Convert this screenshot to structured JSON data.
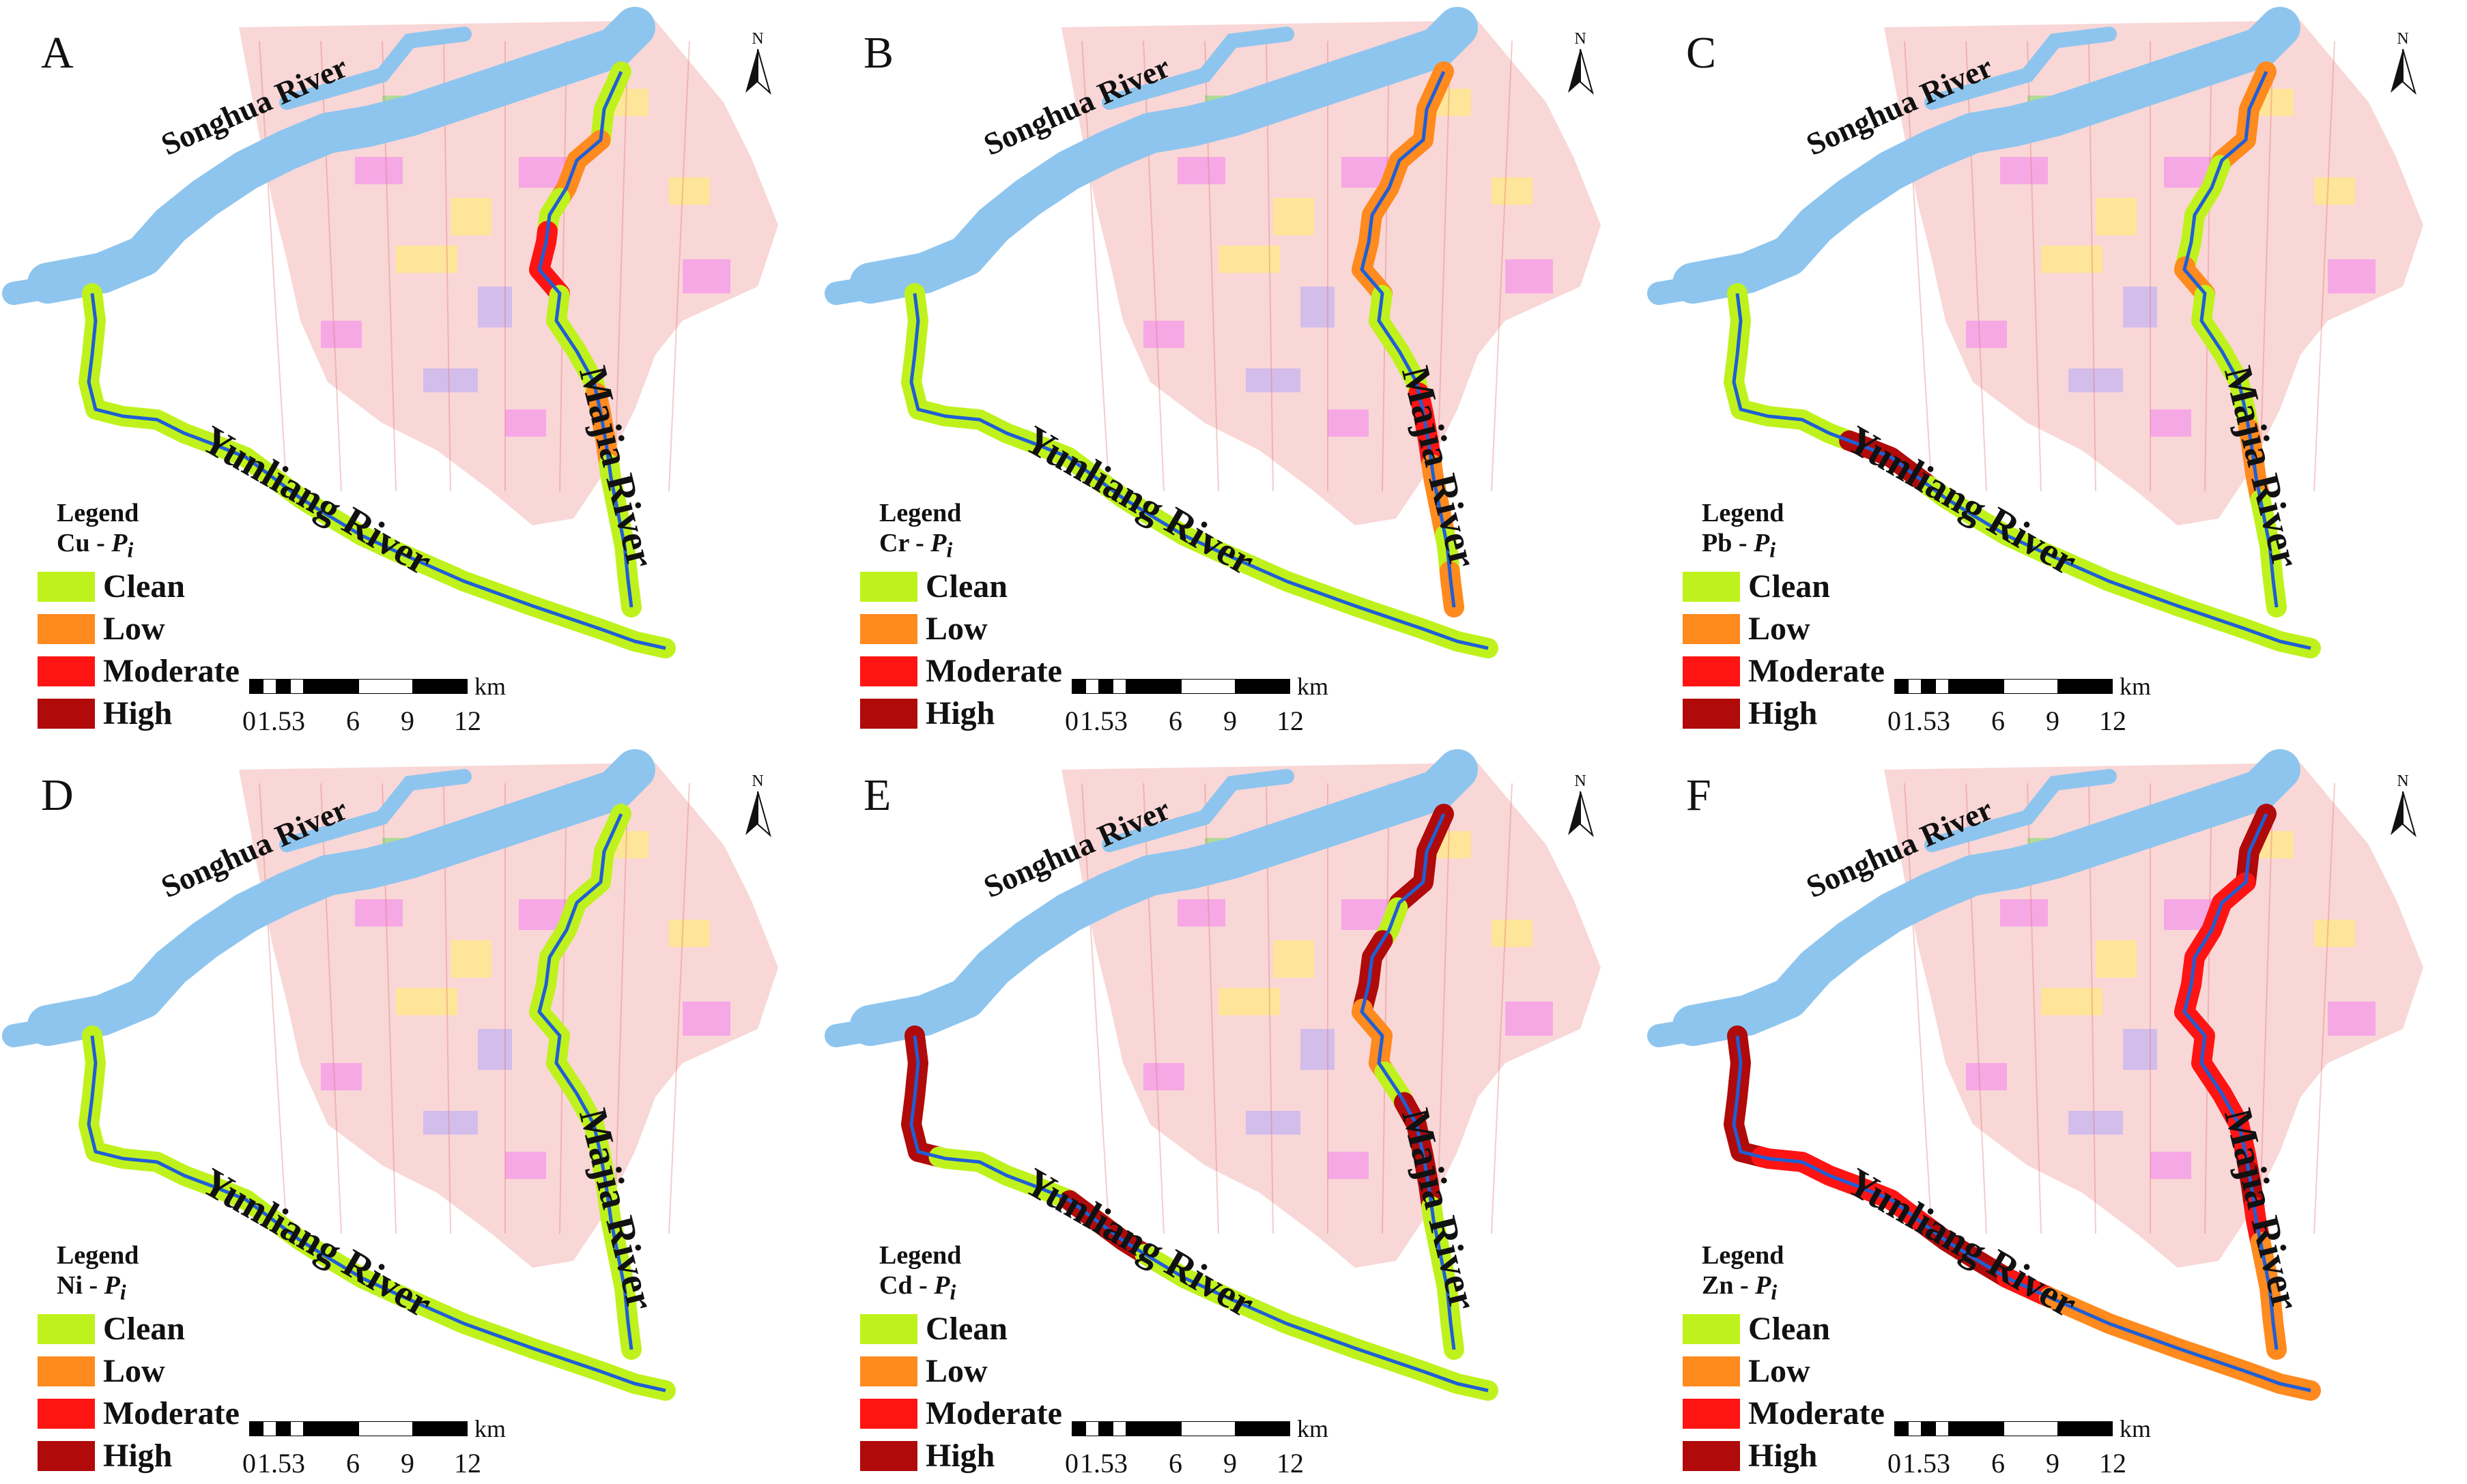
{
  "colors": {
    "clean": "#bff21c",
    "low": "#ff8a1e",
    "moderate": "#ff1414",
    "high": "#b00a0a",
    "river_water": "#8ec5ee",
    "river_channel": "#1f5fd6",
    "urban_base": "#f7c9c9"
  },
  "labels": {
    "songhua": "Songhua River",
    "yunliang": "Yunliang River",
    "majia": "Majia River",
    "legend_title": "Legend",
    "north": "N",
    "km": "km",
    "index_suffix": "P",
    "index_sub": "i",
    "index_sep": " - "
  },
  "legend_classes": [
    {
      "key": "clean",
      "label": "Clean"
    },
    {
      "key": "low",
      "label": "Low"
    },
    {
      "key": "moderate",
      "label": "Moderate"
    },
    {
      "key": "high",
      "label": "High"
    }
  ],
  "scale_ticks": [
    "0",
    "1.5",
    "3",
    "6",
    "9",
    "12"
  ],
  "panels": [
    {
      "letter": "A",
      "metal": "Cu",
      "majia": [
        "clean",
        "clean",
        "low",
        "low",
        "clean",
        "moderate",
        "moderate",
        "clean",
        "clean",
        "clean",
        "low",
        "low",
        "clean",
        "clean",
        "clean",
        "clean"
      ],
      "yunliang": [
        "clean",
        "clean",
        "clean",
        "clean",
        "clean",
        "clean",
        "clean",
        "clean",
        "clean",
        "clean",
        "clean",
        "clean",
        "clean",
        "clean",
        "clean",
        "clean"
      ]
    },
    {
      "letter": "B",
      "metal": "Cr",
      "majia": [
        "low",
        "low",
        "low",
        "low",
        "low",
        "low",
        "low",
        "clean",
        "clean",
        "clean",
        "moderate",
        "moderate",
        "low",
        "low",
        "clean",
        "low"
      ],
      "yunliang": [
        "clean",
        "clean",
        "clean",
        "clean",
        "clean",
        "clean",
        "clean",
        "clean",
        "clean",
        "clean",
        "clean",
        "clean",
        "clean",
        "clean",
        "clean",
        "clean"
      ]
    },
    {
      "letter": "C",
      "metal": "Pb",
      "majia": [
        "low",
        "low",
        "low",
        "clean",
        "clean",
        "clean",
        "low",
        "clean",
        "clean",
        "clean",
        "clean",
        "low",
        "low",
        "clean",
        "clean",
        "clean"
      ],
      "yunliang": [
        "clean",
        "clean",
        "clean",
        "clean",
        "clean",
        "high",
        "high",
        "clean",
        "clean",
        "clean",
        "clean",
        "clean",
        "clean",
        "clean",
        "clean",
        "clean"
      ]
    },
    {
      "letter": "D",
      "metal": "Ni",
      "majia": [
        "clean",
        "clean",
        "clean",
        "clean",
        "clean",
        "clean",
        "clean",
        "clean",
        "clean",
        "clean",
        "clean",
        "clean",
        "clean",
        "clean",
        "clean",
        "clean"
      ],
      "yunliang": [
        "clean",
        "clean",
        "clean",
        "clean",
        "clean",
        "clean",
        "clean",
        "clean",
        "clean",
        "clean",
        "clean",
        "clean",
        "clean",
        "clean",
        "clean",
        "clean"
      ]
    },
    {
      "letter": "E",
      "metal": "Cd",
      "majia": [
        "high",
        "high",
        "high",
        "clean",
        "high",
        "high",
        "low",
        "low",
        "clean",
        "high",
        "high",
        "high",
        "clean",
        "clean",
        "clean",
        "clean"
      ],
      "yunliang": [
        "high",
        "high",
        "high",
        "clean",
        "clean",
        "clean",
        "high",
        "high",
        "clean",
        "clean",
        "clean",
        "clean",
        "clean",
        "clean",
        "clean",
        "clean"
      ]
    },
    {
      "letter": "F",
      "metal": "Zn",
      "majia": [
        "high",
        "high",
        "moderate",
        "moderate",
        "moderate",
        "moderate",
        "moderate",
        "moderate",
        "moderate",
        "moderate",
        "moderate",
        "high",
        "moderate",
        "low",
        "low",
        "low"
      ],
      "yunliang": [
        "high",
        "high",
        "high",
        "moderate",
        "moderate",
        "moderate",
        "moderate",
        "high",
        "high",
        "moderate",
        "low",
        "low",
        "low",
        "low",
        "low",
        "low"
      ]
    }
  ]
}
